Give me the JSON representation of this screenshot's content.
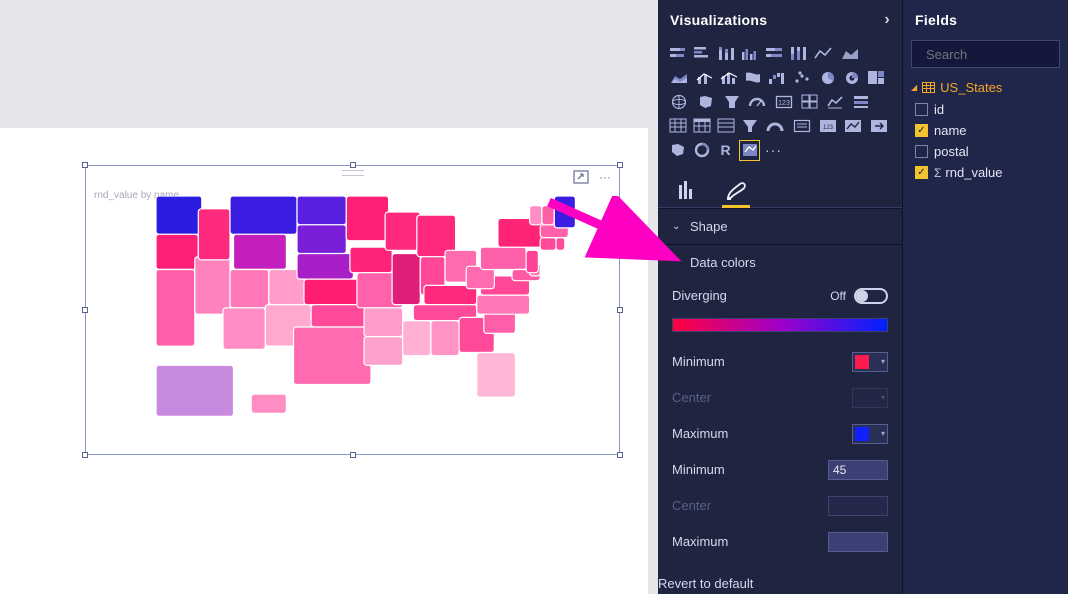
{
  "canvas": {
    "visual_title": "rnd_value by name",
    "focus_mode_title": "Focus mode",
    "more_options_title": "More options"
  },
  "annotation": {
    "color": "#ff00c3"
  },
  "viz_panel": {
    "title": "Visualizations",
    "more_label": "···",
    "tabs": {
      "fields_tab": "Fields",
      "format_tab": "Format"
    },
    "sections": {
      "shape": {
        "label": "Shape",
        "expanded": false
      },
      "data_colors": {
        "label": "Data colors",
        "expanded": true,
        "diverging_label": "Diverging",
        "diverging_state": "Off",
        "gradient_from": "#ff0040",
        "gradient_mid": "#a000c8",
        "gradient_to": "#0020ff",
        "min_color_label": "Minimum",
        "min_color": "#ff1a4d",
        "center_color_label": "Center",
        "max_color_label": "Maximum",
        "max_color": "#1020ff",
        "min_value_label": "Minimum",
        "min_value": "45",
        "center_value_label": "Center",
        "max_value_label": "Maximum",
        "max_value": ""
      }
    },
    "revert_label": "Revert to default"
  },
  "fields_panel": {
    "title": "Fields",
    "search_placeholder": "Search",
    "table": {
      "name": "US_States",
      "fields": [
        {
          "name": "id",
          "checked": false,
          "agg": false
        },
        {
          "name": "name",
          "checked": true,
          "agg": false
        },
        {
          "name": "postal",
          "checked": false,
          "agg": false
        },
        {
          "name": "rnd_value",
          "checked": true,
          "agg": true
        }
      ]
    }
  },
  "map": {
    "background": "#ffffff",
    "states": [
      {
        "id": "WA",
        "c": "#2a1de0"
      },
      {
        "id": "OR",
        "c": "#ff1f77"
      },
      {
        "id": "CA",
        "c": "#ff5ea8"
      },
      {
        "id": "NV",
        "c": "#ff82bd"
      },
      {
        "id": "ID",
        "c": "#ff2a7d"
      },
      {
        "id": "MT",
        "c": "#3a1de0"
      },
      {
        "id": "WY",
        "c": "#c41fbc"
      },
      {
        "id": "UT",
        "c": "#ff77b6"
      },
      {
        "id": "AZ",
        "c": "#ff8cc3"
      },
      {
        "id": "CO",
        "c": "#ff9cca"
      },
      {
        "id": "NM",
        "c": "#ffa8d0"
      },
      {
        "id": "ND",
        "c": "#5a20e2"
      },
      {
        "id": "SD",
        "c": "#7a1fd8"
      },
      {
        "id": "NE",
        "c": "#a81fc8"
      },
      {
        "id": "KS",
        "c": "#ff1e74"
      },
      {
        "id": "OK",
        "c": "#ff4a99"
      },
      {
        "id": "TX",
        "c": "#ff6bae"
      },
      {
        "id": "MN",
        "c": "#ff1f77"
      },
      {
        "id": "IA",
        "c": "#ff237a"
      },
      {
        "id": "MO",
        "c": "#ff62ab"
      },
      {
        "id": "AR",
        "c": "#ff9cca"
      },
      {
        "id": "LA",
        "c": "#ffa1cd"
      },
      {
        "id": "WI",
        "c": "#ff2a7d"
      },
      {
        "id": "IL",
        "c": "#e01e7a"
      },
      {
        "id": "MI",
        "c": "#ff2a80"
      },
      {
        "id": "IN",
        "c": "#ff4796"
      },
      {
        "id": "OH",
        "c": "#ff6bae"
      },
      {
        "id": "KY",
        "c": "#ff2a80"
      },
      {
        "id": "TN",
        "c": "#ff4a99"
      },
      {
        "id": "MS",
        "c": "#ffb0d4"
      },
      {
        "id": "AL",
        "c": "#ff93c6"
      },
      {
        "id": "GA",
        "c": "#ff4a99"
      },
      {
        "id": "FL",
        "c": "#ffb7d8"
      },
      {
        "id": "SC",
        "c": "#ff5ea8"
      },
      {
        "id": "NC",
        "c": "#ff77b6"
      },
      {
        "id": "VA",
        "c": "#ff4796"
      },
      {
        "id": "WV",
        "c": "#ff6bae"
      },
      {
        "id": "PA",
        "c": "#ff60aa"
      },
      {
        "id": "NY",
        "c": "#ff2478"
      },
      {
        "id": "MD",
        "c": "#ff5aa5"
      },
      {
        "id": "DE",
        "c": "#ff70b2"
      },
      {
        "id": "NJ",
        "c": "#ff4394"
      },
      {
        "id": "CT",
        "c": "#ff4a99"
      },
      {
        "id": "RI",
        "c": "#ff4a99"
      },
      {
        "id": "MA",
        "c": "#ff60aa"
      },
      {
        "id": "VT",
        "c": "#ff8cc3"
      },
      {
        "id": "NH",
        "c": "#ff5ea8"
      },
      {
        "id": "ME",
        "c": "#3a1de0"
      },
      {
        "id": "AK",
        "c": "#c88adf"
      },
      {
        "id": "HI",
        "c": "#ff8cc3"
      }
    ]
  }
}
